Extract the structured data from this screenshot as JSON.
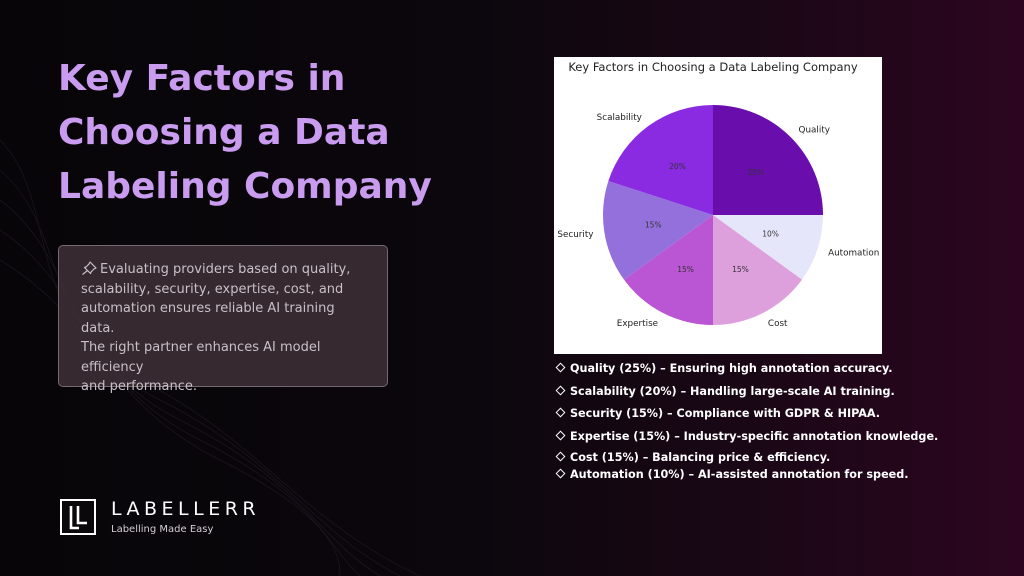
{
  "slide": {
    "title_lines": [
      "Key Factors in",
      "Choosing a Data",
      "Labeling Company"
    ],
    "description": "Evaluating providers based on quality, scalability, security, expertise, cost, and automation ensures reliable AI training data. The right partner enhances AI model efficiency and performance.",
    "description_lines": [
      "Evaluating providers based on quality,",
      "scalability, security, expertise, cost, and",
      "automation ensures reliable AI training data.",
      "The right partner enhances AI model efficiency",
      "and performance."
    ],
    "description_icon": "pushpin-icon",
    "bullet_icon": "diamond-icon",
    "bullets": [
      "Quality (25%) – Ensuring high annotation accuracy.",
      "Scalability (20%) – Handling large-scale AI training.",
      "Security (15%) – Compliance with GDPR & HIPAA.",
      "Expertise (15%) – Industry-specific annotation knowledge.",
      "Cost (15%) – Balancing price & efficiency.",
      "Automation (10%) – AI-assisted annotation for speed."
    ]
  },
  "logo": {
    "name": "LABELLERR",
    "tagline": "Labelling Made Easy"
  },
  "colors": {
    "title": "#c99cf0",
    "background_left": "#070508",
    "background_right": "#2c0620"
  },
  "chart_data": {
    "type": "pie",
    "title": "Key Factors in Choosing a Data Labeling Company",
    "categories": [
      "Quality",
      "Automation",
      "Cost",
      "Expertise",
      "Security",
      "Scalability"
    ],
    "values": [
      25,
      10,
      15,
      15,
      15,
      20
    ],
    "value_labels": [
      "25%",
      "10%",
      "15%",
      "15%",
      "15%",
      "20%"
    ],
    "colors": [
      "#6a0dad",
      "#e6e6fa",
      "#dda0dd",
      "#ba55d3",
      "#9370db",
      "#8a2be2"
    ],
    "start": "top",
    "direction": "clockwise"
  }
}
